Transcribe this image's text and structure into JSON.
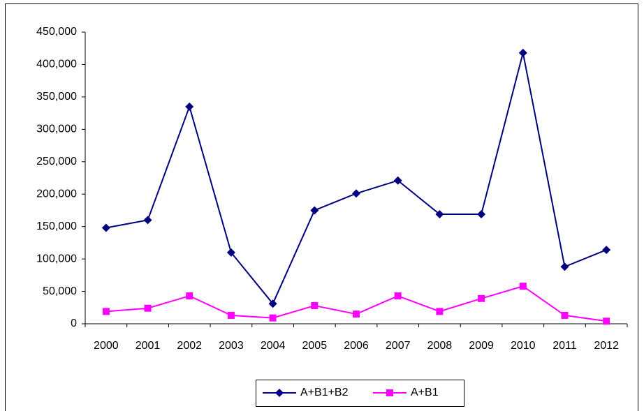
{
  "chart_data": {
    "type": "line",
    "categories": [
      "2000",
      "2001",
      "2002",
      "2003",
      "2004",
      "2005",
      "2006",
      "2007",
      "2008",
      "2009",
      "2010",
      "2011",
      "2012"
    ],
    "series": [
      {
        "name": "A+B1+B2",
        "color": "#000080",
        "marker": "diamond",
        "values": [
          148000,
          160000,
          335000,
          110000,
          31000,
          175000,
          201000,
          221000,
          169000,
          169000,
          418000,
          88000,
          114000
        ]
      },
      {
        "name": "A+B1",
        "color": "#ff00ff",
        "marker": "square",
        "values": [
          19000,
          24000,
          43000,
          13000,
          9000,
          28000,
          15000,
          43000,
          19000,
          39000,
          58000,
          13000,
          4000
        ]
      }
    ],
    "ylim": [
      0,
      450000
    ],
    "yticks": [
      0,
      {
        "value": 50000,
        "label": "50,000"
      },
      {
        "value": 100000,
        "label": "100,000"
      },
      {
        "value": 150000,
        "label": "150,000"
      },
      {
        "value": 200000,
        "label": "200,000"
      },
      {
        "value": 250000,
        "label": "250,000"
      },
      {
        "value": 300000,
        "label": "300,000"
      },
      {
        "value": 350000,
        "label": "350,000"
      },
      {
        "value": 400000,
        "label": "400,000"
      },
      {
        "value": 450000,
        "label": "450,000"
      }
    ],
    "grid": false,
    "legend": "bottom"
  }
}
